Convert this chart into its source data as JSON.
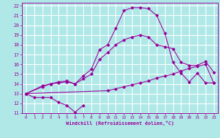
{
  "xlabel": "Windchill (Refroidissement éolien,°C)",
  "bg_color": "#b0e8e8",
  "grid_color": "#ffffff",
  "line_color": "#990099",
  "xlim": [
    -0.5,
    23.5
  ],
  "ylim": [
    11,
    22.3
  ],
  "xticks": [
    0,
    1,
    2,
    3,
    4,
    5,
    6,
    7,
    8,
    9,
    10,
    11,
    12,
    13,
    14,
    15,
    16,
    17,
    18,
    19,
    20,
    21,
    22,
    23
  ],
  "yticks": [
    11,
    12,
    13,
    14,
    15,
    16,
    17,
    18,
    19,
    20,
    21,
    22
  ],
  "series": [
    {
      "x": [
        0,
        1,
        2,
        3,
        4,
        5,
        6,
        7
      ],
      "y": [
        13,
        12.6,
        12.6,
        12.6,
        12.1,
        11.8,
        11.1,
        11.8
      ]
    },
    {
      "x": [
        0,
        2,
        3,
        4,
        5,
        6,
        7,
        8,
        9,
        10,
        11,
        12,
        13,
        14,
        15,
        16,
        17,
        18,
        19,
        20,
        21,
        22,
        23
      ],
      "y": [
        13,
        13.7,
        14.0,
        14.2,
        14.3,
        14.0,
        14.8,
        15.5,
        17.5,
        18.0,
        19.7,
        21.5,
        21.8,
        21.8,
        21.7,
        21.0,
        19.2,
        16.2,
        15.1,
        14.2,
        15.1,
        14.1,
        14.1
      ]
    },
    {
      "x": [
        0,
        10,
        11,
        12,
        13,
        14,
        15,
        16,
        17,
        18,
        19,
        20,
        21,
        22,
        23
      ],
      "y": [
        13,
        13.3,
        13.5,
        13.7,
        13.9,
        14.1,
        14.3,
        14.6,
        14.8,
        15.0,
        15.3,
        15.6,
        15.8,
        16.0,
        14.1
      ]
    },
    {
      "x": [
        0,
        2,
        3,
        4,
        5,
        6,
        7,
        8,
        9,
        10,
        11,
        12,
        13,
        14,
        15,
        16,
        17,
        18,
        19,
        20,
        21,
        22,
        23
      ],
      "y": [
        13,
        13.8,
        14.0,
        14.1,
        14.2,
        14.0,
        14.5,
        15.0,
        16.5,
        17.2,
        18.0,
        18.5,
        18.8,
        19.0,
        18.8,
        18.0,
        17.8,
        17.6,
        16.2,
        15.9,
        15.9,
        16.3,
        15.2
      ]
    }
  ]
}
